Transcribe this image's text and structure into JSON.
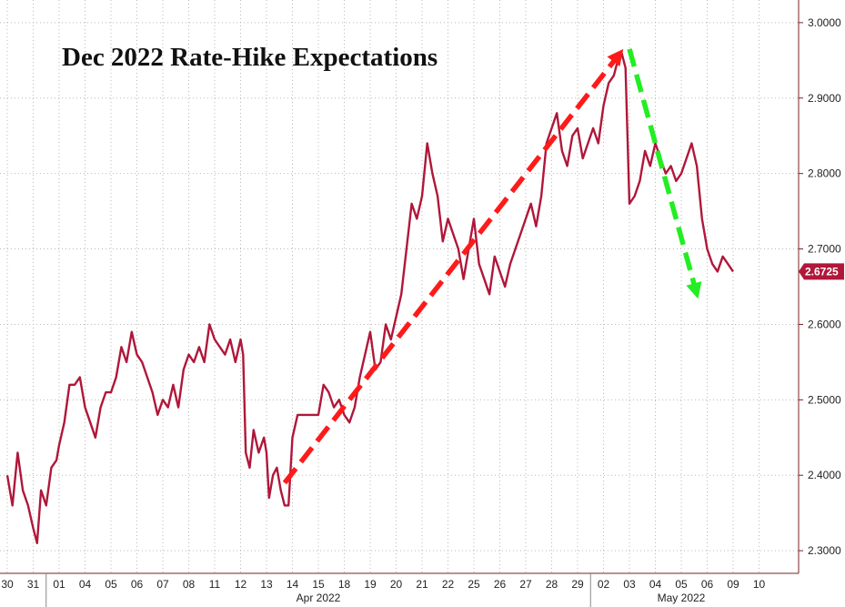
{
  "chart_data": {
    "type": "line",
    "title": "Dec 2022 Rate-Hike Expectations",
    "xlabel": "",
    "ylabel": "",
    "ylim": [
      2.27,
      3.03
    ],
    "yticks": [
      "2.3000",
      "2.4000",
      "2.5000",
      "2.6000",
      "2.7000",
      "2.8000",
      "2.9000",
      "3.0000"
    ],
    "grid": true,
    "legend": "none",
    "x_ticks": [
      "30",
      "31",
      "01",
      "04",
      "05",
      "06",
      "07",
      "08",
      "11",
      "12",
      "13",
      "14",
      "15",
      "18",
      "19",
      "20",
      "21",
      "22",
      "25",
      "26",
      "27",
      "28",
      "29",
      "02",
      "03",
      "04",
      "05",
      "06",
      "09",
      "10"
    ],
    "months": [
      {
        "label": "Apr 2022",
        "start": 2,
        "end": 22
      },
      {
        "label": "May 2022",
        "start": 23,
        "end": 29
      }
    ],
    "last_value_label": "2.6725",
    "series": [
      {
        "color": "#b0173a",
        "points": [
          [
            0.0,
            2.4
          ],
          [
            0.2,
            2.36
          ],
          [
            0.4,
            2.43
          ],
          [
            0.6,
            2.38
          ],
          [
            0.8,
            2.36
          ],
          [
            1.0,
            2.33
          ],
          [
            1.15,
            2.31
          ],
          [
            1.3,
            2.38
          ],
          [
            1.5,
            2.36
          ],
          [
            1.7,
            2.41
          ],
          [
            1.9,
            2.42
          ],
          [
            2.0,
            2.44
          ],
          [
            2.2,
            2.47
          ],
          [
            2.4,
            2.52
          ],
          [
            2.6,
            2.52
          ],
          [
            2.8,
            2.53
          ],
          [
            3.0,
            2.49
          ],
          [
            3.2,
            2.47
          ],
          [
            3.4,
            2.45
          ],
          [
            3.6,
            2.49
          ],
          [
            3.8,
            2.51
          ],
          [
            4.0,
            2.51
          ],
          [
            4.2,
            2.53
          ],
          [
            4.4,
            2.57
          ],
          [
            4.6,
            2.55
          ],
          [
            4.8,
            2.59
          ],
          [
            5.0,
            2.56
          ],
          [
            5.2,
            2.55
          ],
          [
            5.4,
            2.53
          ],
          [
            5.6,
            2.51
          ],
          [
            5.8,
            2.48
          ],
          [
            6.0,
            2.5
          ],
          [
            6.2,
            2.49
          ],
          [
            6.4,
            2.52
          ],
          [
            6.6,
            2.49
          ],
          [
            6.8,
            2.54
          ],
          [
            7.0,
            2.56
          ],
          [
            7.2,
            2.55
          ],
          [
            7.4,
            2.57
          ],
          [
            7.6,
            2.55
          ],
          [
            7.8,
            2.6
          ],
          [
            8.0,
            2.58
          ],
          [
            8.2,
            2.57
          ],
          [
            8.4,
            2.56
          ],
          [
            8.6,
            2.58
          ],
          [
            8.8,
            2.55
          ],
          [
            9.0,
            2.58
          ],
          [
            9.1,
            2.56
          ],
          [
            9.2,
            2.43
          ],
          [
            9.35,
            2.41
          ],
          [
            9.5,
            2.46
          ],
          [
            9.7,
            2.43
          ],
          [
            9.9,
            2.45
          ],
          [
            10.0,
            2.43
          ],
          [
            10.1,
            2.37
          ],
          [
            10.25,
            2.4
          ],
          [
            10.4,
            2.41
          ],
          [
            10.55,
            2.38
          ],
          [
            10.7,
            2.36
          ],
          [
            10.85,
            2.36
          ],
          [
            11.0,
            2.45
          ],
          [
            11.2,
            2.48
          ],
          [
            11.5,
            2.48
          ],
          [
            12.0,
            2.48
          ],
          [
            12.2,
            2.52
          ],
          [
            12.4,
            2.51
          ],
          [
            12.6,
            2.49
          ],
          [
            12.8,
            2.5
          ],
          [
            13.0,
            2.48
          ],
          [
            13.2,
            2.47
          ],
          [
            13.4,
            2.49
          ],
          [
            13.6,
            2.53
          ],
          [
            13.8,
            2.56
          ],
          [
            14.0,
            2.59
          ],
          [
            14.2,
            2.54
          ],
          [
            14.4,
            2.55
          ],
          [
            14.6,
            2.6
          ],
          [
            14.8,
            2.58
          ],
          [
            15.0,
            2.61
          ],
          [
            15.2,
            2.64
          ],
          [
            15.4,
            2.7
          ],
          [
            15.6,
            2.76
          ],
          [
            15.8,
            2.74
          ],
          [
            16.0,
            2.77
          ],
          [
            16.2,
            2.84
          ],
          [
            16.4,
            2.8
          ],
          [
            16.6,
            2.77
          ],
          [
            16.8,
            2.71
          ],
          [
            17.0,
            2.74
          ],
          [
            17.2,
            2.72
          ],
          [
            17.4,
            2.7
          ],
          [
            17.6,
            2.66
          ],
          [
            17.8,
            2.7
          ],
          [
            18.0,
            2.74
          ],
          [
            18.2,
            2.68
          ],
          [
            18.4,
            2.66
          ],
          [
            18.6,
            2.64
          ],
          [
            18.8,
            2.69
          ],
          [
            19.0,
            2.67
          ],
          [
            19.2,
            2.65
          ],
          [
            19.4,
            2.68
          ],
          [
            19.6,
            2.7
          ],
          [
            19.8,
            2.72
          ],
          [
            20.0,
            2.74
          ],
          [
            20.2,
            2.76
          ],
          [
            20.4,
            2.73
          ],
          [
            20.6,
            2.77
          ],
          [
            20.8,
            2.84
          ],
          [
            21.0,
            2.86
          ],
          [
            21.2,
            2.88
          ],
          [
            21.4,
            2.83
          ],
          [
            21.6,
            2.81
          ],
          [
            21.8,
            2.85
          ],
          [
            22.0,
            2.86
          ],
          [
            22.2,
            2.82
          ],
          [
            22.4,
            2.84
          ],
          [
            22.6,
            2.86
          ],
          [
            22.8,
            2.84
          ],
          [
            23.0,
            2.89
          ],
          [
            23.2,
            2.92
          ],
          [
            23.4,
            2.93
          ],
          [
            23.55,
            2.95
          ],
          [
            23.7,
            2.96
          ],
          [
            23.85,
            2.94
          ],
          [
            24.0,
            2.76
          ],
          [
            24.2,
            2.77
          ],
          [
            24.4,
            2.79
          ],
          [
            24.6,
            2.83
          ],
          [
            24.8,
            2.81
          ],
          [
            25.0,
            2.84
          ],
          [
            25.2,
            2.82
          ],
          [
            25.4,
            2.8
          ],
          [
            25.6,
            2.81
          ],
          [
            25.8,
            2.79
          ],
          [
            26.0,
            2.8
          ],
          [
            26.2,
            2.82
          ],
          [
            26.4,
            2.84
          ],
          [
            26.6,
            2.81
          ],
          [
            26.8,
            2.74
          ],
          [
            27.0,
            2.7
          ],
          [
            27.2,
            2.68
          ],
          [
            27.4,
            2.67
          ],
          [
            27.6,
            2.69
          ],
          [
            27.8,
            2.68
          ],
          [
            28.0,
            2.67
          ]
        ]
      }
    ],
    "annotations": [
      {
        "type": "arrow",
        "color": "#ff1a1a",
        "from": [
          10.7,
          2.39
        ],
        "to": [
          23.65,
          2.96
        ]
      },
      {
        "type": "arrow",
        "color": "#22ee22",
        "from": [
          24.0,
          2.965
        ],
        "to": [
          26.6,
          2.64
        ]
      }
    ]
  },
  "colors": {
    "series": "#b0173a",
    "grid": "#b9b9b9",
    "axis": "#7a2020"
  }
}
